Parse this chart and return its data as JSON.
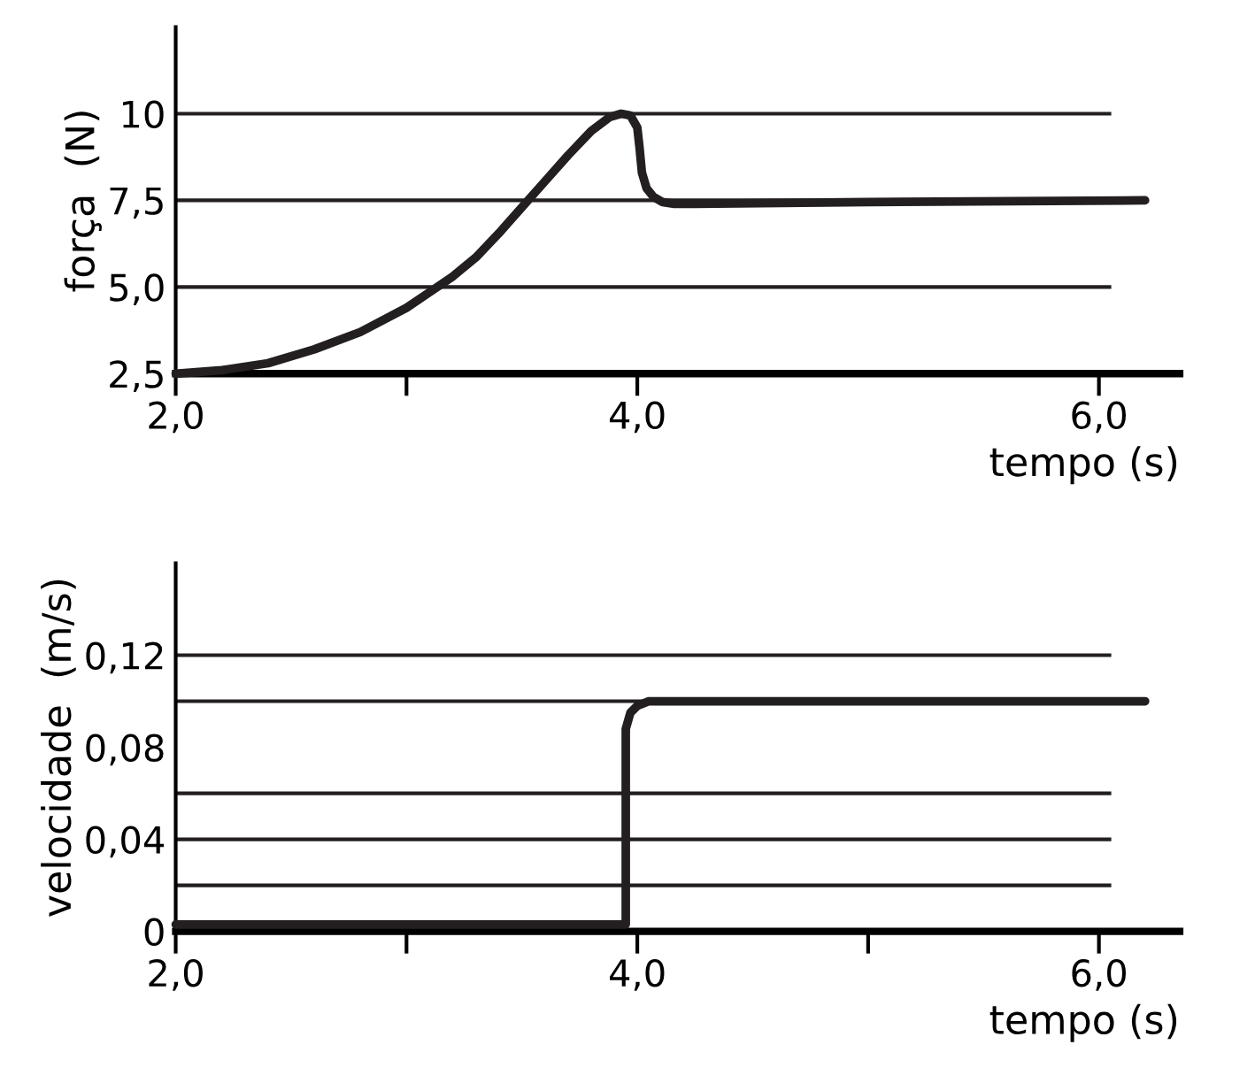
{
  "chart_data": [
    {
      "type": "line",
      "xlabel": "tempo (s)",
      "ylabel": "força  (N)",
      "series": [
        {
          "color": "#231f20",
          "x": [
            2.0,
            2.2,
            2.4,
            2.6,
            2.8,
            3.0,
            3.1,
            3.2,
            3.3,
            3.4,
            3.5,
            3.6,
            3.7,
            3.8,
            3.88,
            3.93,
            3.97,
            4.0,
            4.01,
            4.02,
            4.04,
            4.07,
            4.11,
            4.16,
            4.25,
            5.0,
            6.2
          ],
          "values": [
            2.5,
            2.6,
            2.8,
            3.2,
            3.7,
            4.4,
            4.85,
            5.3,
            5.85,
            6.55,
            7.3,
            8.05,
            8.8,
            9.5,
            9.9,
            10.0,
            9.95,
            9.6,
            9.0,
            8.3,
            7.85,
            7.6,
            7.45,
            7.4,
            7.4,
            7.45,
            7.5
          ]
        }
      ],
      "xlim": [
        2.0,
        6.35
      ],
      "xticks": [
        {
          "value": 2.0,
          "label": "2,0"
        },
        {
          "value": 3.0,
          "label": null
        },
        {
          "value": 4.0,
          "label": "4,0"
        },
        {
          "value": 6.0,
          "label": "6,0"
        }
      ],
      "ylim": [
        2.5,
        12.5
      ],
      "yticks": [
        {
          "value": 2.5,
          "label": "2,5"
        },
        {
          "value": 5.0,
          "label": "5,0"
        },
        {
          "value": 7.5,
          "label": "7,5"
        },
        10
      ],
      "ref_lines": [
        {
          "axis": "y",
          "value": 5.0,
          "color": "#231f20"
        },
        {
          "axis": "y",
          "value": 7.5,
          "color": "#231f20"
        },
        {
          "axis": "y",
          "value": 10,
          "color": "#231f20"
        }
      ],
      "grid": false,
      "marker": "none",
      "line_style": "solid"
    },
    {
      "type": "line",
      "xlabel": "tempo (s)",
      "ylabel": "velocidade  (m/s)",
      "series": [
        {
          "color": "#231f20",
          "x": [
            2.0,
            3.95,
            3.95,
            3.97,
            4.0,
            4.05,
            6.2
          ],
          "values": [
            0.003,
            0.003,
            0.088,
            0.095,
            0.098,
            0.1,
            0.1
          ]
        }
      ],
      "xlim": [
        2.0,
        6.35
      ],
      "xticks": [
        {
          "value": 2.0,
          "label": "2,0"
        },
        {
          "value": 3.0,
          "label": null
        },
        {
          "value": 4.0,
          "label": "4,0"
        },
        {
          "value": 5.0,
          "label": null
        },
        {
          "value": 6.0,
          "label": "6,0"
        }
      ],
      "ylim": [
        0,
        0.16
      ],
      "yticks": [
        0,
        {
          "value": 0.04,
          "label": "0,04"
        },
        {
          "value": 0.08,
          "label": "0,08"
        },
        {
          "value": 0.12,
          "label": "0,12"
        }
      ],
      "ref_lines": [
        {
          "axis": "y",
          "value": 0.02,
          "color": "#231f20"
        },
        {
          "axis": "y",
          "value": 0.04,
          "color": "#231f20"
        },
        {
          "axis": "y",
          "value": 0.06,
          "color": "#231f20"
        },
        {
          "axis": "y",
          "value": 0.1,
          "color": "#231f20"
        },
        {
          "axis": "y",
          "value": 0.12,
          "color": "#231f20"
        }
      ],
      "grid": false,
      "marker": "none",
      "line_style": "solid"
    }
  ]
}
